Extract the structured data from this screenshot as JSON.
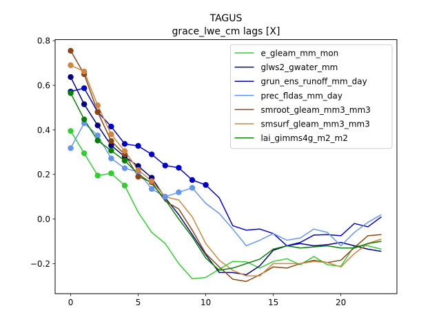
{
  "chart_data": {
    "type": "line",
    "title": "TAGUS",
    "subtitle": "grace_lwe_cm lags [X]",
    "xlabel": "",
    "ylabel": "",
    "xlim": [
      -1.15,
      24.15
    ],
    "ylim": [
      -0.335,
      0.805
    ],
    "x_ticks": [
      0,
      5,
      10,
      15,
      20
    ],
    "x_tick_labels": [
      "0",
      "5",
      "10",
      "15",
      "20"
    ],
    "y_ticks": [
      -0.2,
      0.0,
      0.2,
      0.4,
      0.6,
      0.8
    ],
    "y_tick_labels": [
      "−0.2",
      "0.0",
      "0.2",
      "0.4",
      "0.6",
      "0.8"
    ],
    "grid": false,
    "legend_position": "upper-right",
    "x": [
      0,
      1,
      2,
      3,
      4,
      5,
      6,
      7,
      8,
      9,
      10,
      11,
      12,
      13,
      14,
      15,
      16,
      17,
      18,
      19,
      20,
      21,
      22,
      23
    ],
    "series": [
      {
        "name": "e_gleam_mm_mon",
        "color": "#32cd32",
        "marker_count": 5,
        "values": [
          0.395,
          0.295,
          0.195,
          0.205,
          0.15,
          0.03,
          -0.06,
          -0.11,
          -0.2,
          -0.268,
          -0.262,
          -0.225,
          -0.19,
          -0.192,
          -0.22,
          -0.19,
          -0.178,
          -0.205,
          -0.168,
          -0.205,
          -0.212,
          -0.12,
          -0.12,
          -0.135
        ]
      },
      {
        "name": "glws2_gwater_mm",
        "color": "#000080",
        "marker_count": 7,
        "values": [
          0.637,
          0.515,
          0.42,
          0.33,
          0.28,
          0.238,
          0.185,
          0.095,
          0.02,
          -0.07,
          -0.16,
          -0.24,
          -0.24,
          -0.25,
          -0.21,
          -0.14,
          -0.12,
          -0.11,
          -0.12,
          -0.115,
          -0.105,
          -0.12,
          -0.135,
          -0.145
        ]
      },
      {
        "name": "grun_ens_runoff_mm_day",
        "color": "#0000cd",
        "marker_count": 11,
        "values": [
          0.572,
          0.587,
          0.48,
          0.415,
          0.337,
          0.328,
          0.29,
          0.24,
          0.23,
          0.175,
          0.153,
          0.095,
          -0.03,
          -0.05,
          -0.045,
          -0.065,
          -0.12,
          -0.105,
          -0.072,
          -0.07,
          -0.075,
          -0.02,
          -0.035,
          0.01
        ]
      },
      {
        "name": "prec_fldas_mm_day",
        "color": "#6495ed",
        "marker_count": 10,
        "values": [
          0.318,
          0.43,
          0.375,
          0.272,
          0.228,
          0.212,
          0.135,
          0.1,
          0.12,
          0.14,
          0.07,
          0.025,
          -0.045,
          -0.12,
          -0.095,
          -0.065,
          -0.095,
          -0.085,
          -0.045,
          -0.06,
          -0.12,
          -0.06,
          -0.015,
          0.02
        ]
      },
      {
        "name": "smroot_gleam_mm3_mm3",
        "color": "#8b4513",
        "marker_count": 7,
        "values": [
          0.755,
          0.65,
          0.48,
          0.35,
          0.29,
          0.19,
          0.165,
          0.08,
          0.045,
          -0.05,
          -0.155,
          -0.215,
          -0.27,
          -0.28,
          -0.25,
          -0.215,
          -0.22,
          -0.2,
          -0.185,
          -0.195,
          -0.185,
          -0.128,
          -0.075,
          -0.07
        ]
      },
      {
        "name": "smsurf_gleam_mm3_mm3",
        "color": "#cd853f",
        "marker_count": 7,
        "values": [
          0.69,
          0.662,
          0.51,
          0.38,
          0.305,
          0.22,
          0.17,
          0.1,
          0.085,
          0.01,
          -0.11,
          -0.185,
          -0.23,
          -0.255,
          -0.255,
          -0.2,
          -0.2,
          -0.2,
          -0.19,
          -0.195,
          -0.215,
          -0.155,
          -0.11,
          -0.09
        ]
      },
      {
        "name": "lai_gimms4g_m2_m2",
        "color": "#008000",
        "marker_count": 5,
        "values": [
          0.565,
          0.447,
          0.352,
          0.307,
          0.262,
          0.202,
          0.16,
          0.087,
          0.0,
          -0.08,
          -0.175,
          -0.23,
          -0.22,
          -0.2,
          -0.18,
          -0.135,
          -0.12,
          -0.13,
          -0.125,
          -0.12,
          -0.13,
          -0.13,
          -0.11,
          -0.1
        ]
      }
    ]
  }
}
